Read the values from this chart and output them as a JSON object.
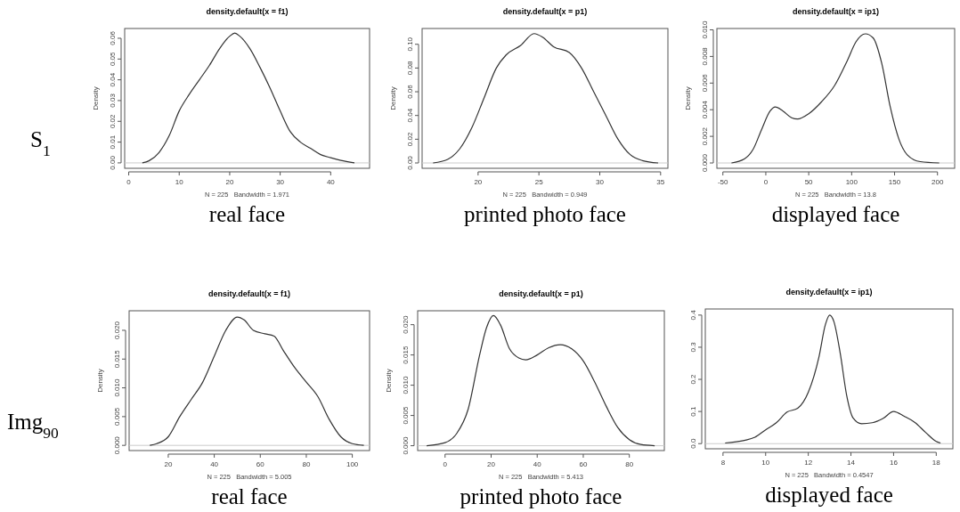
{
  "chart_data": [
    {
      "type": "line",
      "title": "density.default(x = f1)",
      "xlabel": "N = 225   Bandwidth = 1.971",
      "ylabel": "Density",
      "color": "#333333",
      "x": [
        2.7,
        4,
        6,
        8,
        10,
        12,
        14,
        16,
        18,
        20,
        21,
        22,
        24,
        26,
        28,
        30,
        32,
        34,
        36,
        38,
        40,
        42,
        44.7
      ],
      "values": [
        0,
        0.001,
        0.005,
        0.013,
        0.025,
        0.033,
        0.04,
        0.047,
        0.055,
        0.061,
        0.0625,
        0.061,
        0.055,
        0.046,
        0.036,
        0.025,
        0.015,
        0.01,
        0.007,
        0.004,
        0.0025,
        0.0012,
        0
      ],
      "xlim": [
        -0.8,
        47.7
      ],
      "ylim": [
        -0.0026,
        0.0647
      ],
      "xticks": [
        0,
        10,
        20,
        30,
        40
      ],
      "yticks": [
        {
          "value": 0,
          "label": "0.00"
        },
        {
          "value": 0.01,
          "label": "0.01"
        },
        {
          "value": 0.02,
          "label": "0.02"
        },
        {
          "value": 0.03,
          "label": "0.03"
        },
        {
          "value": 0.04,
          "label": "0.04"
        },
        {
          "value": 0.05,
          "label": "0.05"
        },
        {
          "value": 0.06,
          "label": "0.06"
        }
      ],
      "ref_lines": [
        {
          "axis": "y",
          "value": 0,
          "color": "#cccccc"
        }
      ],
      "annotations": [
        "real face",
        "S$_{1}$"
      ]
    },
    {
      "type": "line",
      "title": "density.default(x = p1)",
      "xlabel": "N = 225   Bandwidth = 0.949",
      "ylabel": "Density",
      "color": "#333333",
      "x": [
        16.3,
        17.5,
        18.5,
        19.5,
        20.5,
        21.5,
        22.3,
        23.5,
        24.6,
        25.3,
        26.2,
        27.5,
        28.5,
        29.5,
        30.5,
        31.5,
        32.5,
        33.5,
        34.8
      ],
      "values": [
        0,
        0.003,
        0.012,
        0.03,
        0.055,
        0.08,
        0.091,
        0.099,
        0.109,
        0.106,
        0.098,
        0.093,
        0.08,
        0.06,
        0.04,
        0.02,
        0.007,
        0.002,
        0
      ],
      "xlim": [
        15.4,
        35.6
      ],
      "ylim": [
        -0.0045,
        0.1133
      ],
      "xticks": [
        20,
        25,
        30,
        35
      ],
      "yticks": [
        {
          "value": 0,
          "label": "0.00"
        },
        {
          "value": 0.02,
          "label": "0.02"
        },
        {
          "value": 0.04,
          "label": "0.04"
        },
        {
          "value": 0.06,
          "label": "0.06"
        },
        {
          "value": 0.08,
          "label": "0.08"
        },
        {
          "value": 0.1,
          "label": "0.10"
        }
      ],
      "ref_lines": [
        {
          "axis": "y",
          "value": 0,
          "color": "#cccccc"
        }
      ],
      "annotations": [
        "printed photo face"
      ]
    },
    {
      "type": "line",
      "title": "density.default(x = ip1)",
      "xlabel": "N = 225   Bandwidth = 13.8",
      "ylabel": "Density",
      "color": "#333333",
      "x": [
        -40,
        -25,
        -15,
        -5,
        5,
        11,
        20,
        30,
        37,
        50,
        65,
        80,
        95,
        105,
        116,
        125,
        135,
        145,
        155,
        165,
        180,
        202
      ],
      "values": [
        0,
        0.0003,
        0.001,
        0.0025,
        0.0039,
        0.0042,
        0.0039,
        0.0034,
        0.0033,
        0.0037,
        0.0046,
        0.0058,
        0.0077,
        0.0091,
        0.0097,
        0.0094,
        0.0075,
        0.0042,
        0.0018,
        0.0006,
        0.0001,
        0
      ],
      "xlim": [
        -57,
        220
      ],
      "ylim": [
        -0.0004,
        0.0101
      ],
      "xticks": [
        -50,
        0,
        50,
        100,
        150,
        200
      ],
      "yticks": [
        {
          "value": 0,
          "label": "0.000"
        },
        {
          "value": 0.002,
          "label": "0.002"
        },
        {
          "value": 0.004,
          "label": "0.004"
        },
        {
          "value": 0.006,
          "label": "0.006"
        },
        {
          "value": 0.008,
          "label": "0.008"
        },
        {
          "value": 0.01,
          "label": "0.010"
        }
      ],
      "ref_lines": [
        {
          "axis": "y",
          "value": 0,
          "color": "#cccccc"
        }
      ],
      "annotations": [
        "displayed face"
      ]
    },
    {
      "type": "line",
      "title": "density.default(x = f1)",
      "xlabel": "N = 225   Bandwidth = 5.005",
      "ylabel": "Density",
      "color": "#333333",
      "x": [
        12,
        15,
        20,
        25,
        30,
        35,
        40,
        45,
        50,
        53,
        57,
        62,
        66,
        70,
        75,
        80,
        85,
        90,
        95,
        100,
        105
      ],
      "values": [
        0,
        0.0003,
        0.0015,
        0.005,
        0.008,
        0.011,
        0.0155,
        0.02,
        0.0223,
        0.0218,
        0.02,
        0.0194,
        0.019,
        0.0165,
        0.0135,
        0.011,
        0.0085,
        0.0045,
        0.0015,
        0.0003,
        0
      ],
      "xlim": [
        3,
        107.5
      ],
      "ylim": [
        -0.0009,
        0.0234
      ],
      "xticks": [
        20,
        40,
        60,
        80,
        100
      ],
      "yticks": [
        {
          "value": 0,
          "label": "0.000"
        },
        {
          "value": 0.005,
          "label": "0.005"
        },
        {
          "value": 0.01,
          "label": "0.010"
        },
        {
          "value": 0.015,
          "label": "0.015"
        },
        {
          "value": 0.02,
          "label": "0.020"
        }
      ],
      "ref_lines": [
        {
          "axis": "y",
          "value": 0,
          "color": "#cccccc"
        }
      ],
      "annotations": [
        "real face",
        "Img$_{90}$"
      ]
    },
    {
      "type": "line",
      "title": "density.default(x = p1)",
      "xlabel": "N = 225   Bandwidth = 5.413",
      "ylabel": "Density",
      "color": "#333333",
      "x": [
        -8,
        0,
        5,
        10,
        15,
        18,
        21,
        24,
        28,
        32,
        35,
        40,
        45,
        50,
        55,
        60,
        65,
        70,
        75,
        80,
        85,
        91
      ],
      "values": [
        0,
        0.0005,
        0.002,
        0.006,
        0.015,
        0.0195,
        0.0215,
        0.02,
        0.016,
        0.0145,
        0.0142,
        0.015,
        0.0162,
        0.0167,
        0.016,
        0.014,
        0.0105,
        0.0065,
        0.003,
        0.001,
        0.0002,
        0
      ],
      "xlim": [
        -11.9,
        95.2
      ],
      "ylim": [
        -0.0008,
        0.0223
      ],
      "xticks": [
        0,
        20,
        40,
        60,
        80
      ],
      "yticks": [
        {
          "value": 0,
          "label": "0.000"
        },
        {
          "value": 0.005,
          "label": "0.005"
        },
        {
          "value": 0.01,
          "label": "0.010"
        },
        {
          "value": 0.015,
          "label": "0.015"
        },
        {
          "value": 0.02,
          "label": "0.020"
        }
      ],
      "ref_lines": [
        {
          "axis": "y",
          "value": 0,
          "color": "#cccccc"
        }
      ],
      "annotations": [
        "printed photo face"
      ]
    },
    {
      "type": "line",
      "title": "density.default(x = ip1)",
      "xlabel": "N = 225   Bandwidth = 0.4547",
      "color": "#333333",
      "x": [
        8.1,
        9,
        9.5,
        10,
        10.5,
        11,
        11.5,
        12,
        12.5,
        12.8,
        13,
        13.2,
        13.5,
        13.8,
        14.1,
        14.5,
        15,
        15.5,
        16,
        16.5,
        17,
        17.5,
        18,
        18.2
      ],
      "values": [
        0.002,
        0.01,
        0.02,
        0.043,
        0.065,
        0.098,
        0.11,
        0.16,
        0.27,
        0.37,
        0.4,
        0.38,
        0.28,
        0.15,
        0.08,
        0.062,
        0.065,
        0.078,
        0.1,
        0.085,
        0.066,
        0.035,
        0.007,
        0.002
      ],
      "xlim": [
        7.17,
        18.78
      ],
      "ylim": [
        -0.016,
        0.419
      ],
      "xticks": [
        8,
        10,
        12,
        14,
        16,
        18
      ],
      "yticks": [
        {
          "value": 0,
          "label": "0.0"
        },
        {
          "value": 0.1,
          "label": "0.1"
        },
        {
          "value": 0.2,
          "label": "0.2"
        },
        {
          "value": 0.3,
          "label": "0.3"
        },
        {
          "value": 0.4,
          "label": "0.4"
        }
      ],
      "ref_lines": [
        {
          "axis": "y",
          "value": 0,
          "color": "#cccccc"
        }
      ],
      "annotations": [
        "displayed face"
      ]
    }
  ]
}
